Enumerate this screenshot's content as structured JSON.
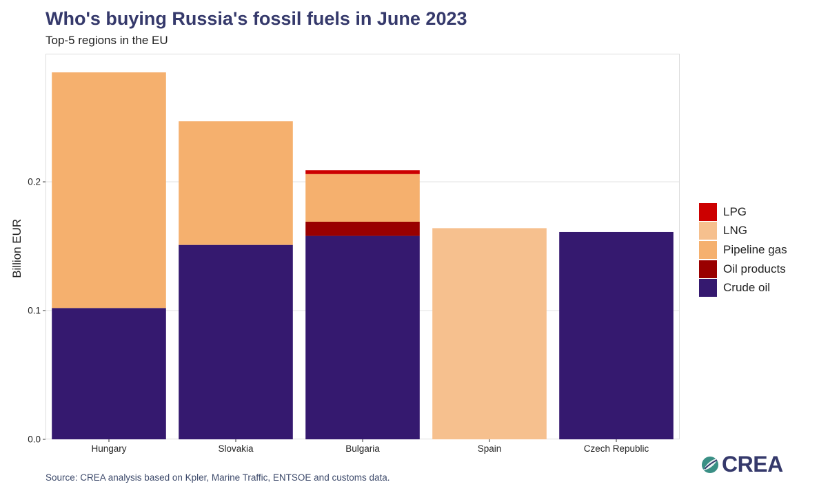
{
  "title": "Who's buying Russia's fossil fuels in June 2023",
  "subtitle": "Top-5 regions in the EU",
  "source": "Source: CREA analysis based on Kpler, Marine Traffic, ENTSOE and customs data.",
  "logo": {
    "text": "CREA",
    "icon": "crea-leaf-icon"
  },
  "colors": {
    "LPG": "#cc0000",
    "LNG": "#f6c08e",
    "Pipeline gas": "#f5b06e",
    "Oil products": "#990000",
    "Crude oil": "#35196f",
    "panel_border": "#dddddd",
    "grid": "#e3e3e3"
  },
  "chart_data": {
    "type": "bar",
    "stacked": true,
    "title": "Who's buying Russia's fossil fuels in June 2023",
    "subtitle": "Top-5 regions in the EU",
    "xlabel": "",
    "ylabel": "Billion EUR",
    "ylim": [
      0,
      0.2995
    ],
    "yticks": [
      0.0,
      0.1,
      0.2
    ],
    "ytick_labels": [
      "0.0",
      "0.1",
      "0.2"
    ],
    "grid": true,
    "legend_position": "right",
    "categories": [
      "Hungary",
      "Slovakia",
      "Bulgaria",
      "Spain",
      "Czech Republic"
    ],
    "series": [
      {
        "name": "Crude oil",
        "values": [
          0.102,
          0.151,
          0.158,
          0.0,
          0.161
        ]
      },
      {
        "name": "Oil products",
        "values": [
          0.0,
          0.0,
          0.011,
          0.0,
          0.0
        ]
      },
      {
        "name": "Pipeline gas",
        "values": [
          0.183,
          0.096,
          0.037,
          0.0,
          0.0
        ]
      },
      {
        "name": "LNG",
        "values": [
          0.0,
          0.0,
          0.0,
          0.164,
          0.0
        ]
      },
      {
        "name": "LPG",
        "values": [
          0.0,
          0.0,
          0.003,
          0.0,
          0.0
        ]
      }
    ],
    "legend_order": [
      "LPG",
      "LNG",
      "Pipeline gas",
      "Oil products",
      "Crude oil"
    ]
  }
}
